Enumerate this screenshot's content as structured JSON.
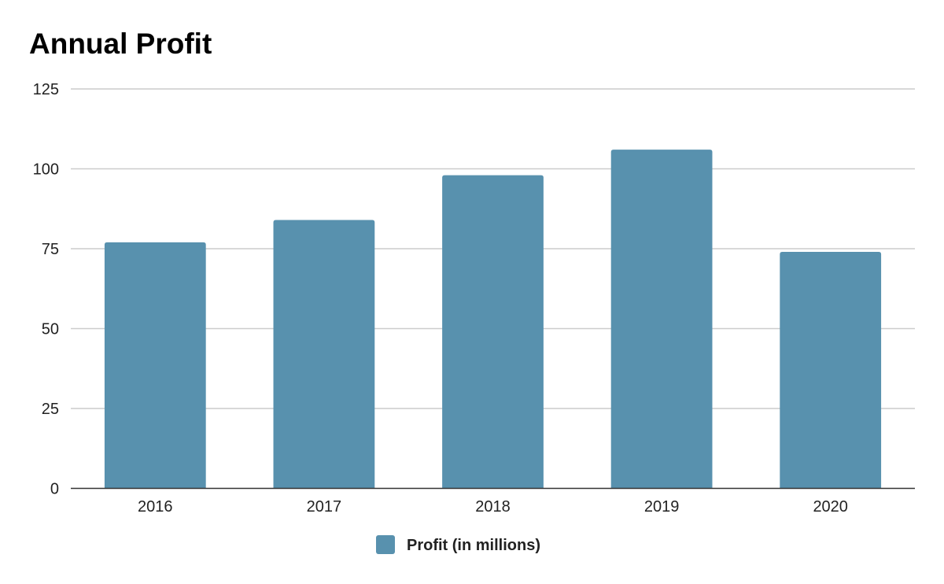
{
  "chart_data": {
    "type": "bar",
    "title": "Annual Profit",
    "xlabel": "",
    "ylabel": "",
    "categories": [
      "2016",
      "2017",
      "2018",
      "2019",
      "2020"
    ],
    "series": [
      {
        "name": "Profit (in millions)",
        "values": [
          77,
          84,
          98,
          106,
          74
        ],
        "color": "#5891ae"
      }
    ],
    "ylim": [
      0,
      125
    ],
    "yticks": [
      "0",
      "25",
      "50",
      "75",
      "100",
      "125"
    ],
    "grid": true,
    "legend_position": "bottom"
  }
}
